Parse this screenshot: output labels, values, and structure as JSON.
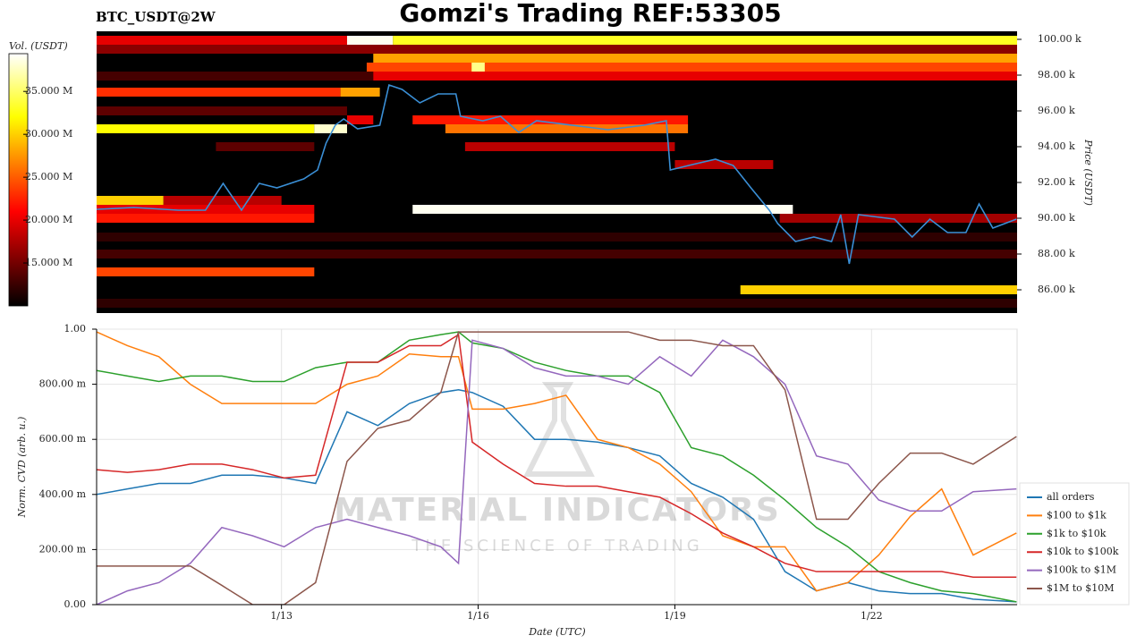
{
  "title": "Gomzi's Trading REF:53305",
  "watermark": {
    "title": "MATERIAL INDICATORS",
    "subtitle": "THE SCIENCE OF TRADING"
  },
  "chart_data": [
    {
      "type": "heatmap",
      "title": "BTC_USDT@2W",
      "ylabel": "Price (USDT)",
      "colorbar_label": "Vol. (USDT)",
      "clim": [
        10000000,
        39400000
      ],
      "cticks": [
        {
          "value": 15000000,
          "label": "15.000 M"
        },
        {
          "value": 20000000,
          "label": "20.000 M"
        },
        {
          "value": 25000000,
          "label": "25.000 M"
        },
        {
          "value": 30000000,
          "label": "30.000 M"
        },
        {
          "value": 35000000,
          "label": "35.000 M"
        }
      ],
      "xlim": [
        10.18,
        24.22
      ],
      "ylim": [
        84700,
        100450
      ],
      "yticks": [
        {
          "value": 86000,
          "label": "86.00 k"
        },
        {
          "value": 88000,
          "label": "88.00 k"
        },
        {
          "value": 90000,
          "label": "90.00 k"
        },
        {
          "value": 92000,
          "label": "92.00 k"
        },
        {
          "value": 94000,
          "label": "94.00 k"
        },
        {
          "value": 96000,
          "label": "96.00 k"
        },
        {
          "value": 98000,
          "label": "98.00 k"
        },
        {
          "value": 100000,
          "label": "100.00 k"
        }
      ],
      "bands": [
        {
          "price": 99950,
          "x": [
            10.18,
            14.0
          ],
          "volume": 20000000
        },
        {
          "price": 99950,
          "x": [
            14.0,
            14.7
          ],
          "volume": 39000000
        },
        {
          "price": 99950,
          "x": [
            14.7,
            24.22
          ],
          "volume": 33000000
        },
        {
          "price": 99450,
          "x": [
            10.18,
            24.22
          ],
          "volume": 16000000
        },
        {
          "price": 98950,
          "x": [
            14.4,
            24.22
          ],
          "volume": 28000000
        },
        {
          "price": 98450,
          "x": [
            14.3,
            24.22
          ],
          "volume": 24000000
        },
        {
          "price": 98450,
          "x": [
            15.9,
            16.1
          ],
          "volume": 36000000
        },
        {
          "price": 97950,
          "x": [
            10.18,
            14.4
          ],
          "volume": 13000000
        },
        {
          "price": 97950,
          "x": [
            14.4,
            24.22
          ],
          "volume": 20000000
        },
        {
          "price": 97050,
          "x": [
            10.18,
            13.9
          ],
          "volume": 23000000
        },
        {
          "price": 97050,
          "x": [
            13.9,
            14.5
          ],
          "volume": 28000000
        },
        {
          "price": 96000,
          "x": [
            10.18,
            14.0
          ],
          "volume": 14000000
        },
        {
          "price": 95500,
          "x": [
            14.0,
            14.4
          ],
          "volume": 20000000
        },
        {
          "price": 95500,
          "x": [
            15.0,
            19.2
          ],
          "volume": 22000000
        },
        {
          "price": 95000,
          "x": [
            10.18,
            13.5
          ],
          "volume": 32000000
        },
        {
          "price": 95000,
          "x": [
            13.5,
            14.0
          ],
          "volume": 38000000
        },
        {
          "price": 95000,
          "x": [
            15.5,
            19.2
          ],
          "volume": 26000000
        },
        {
          "price": 94000,
          "x": [
            12.0,
            13.5
          ],
          "volume": 14000000
        },
        {
          "price": 94000,
          "x": [
            15.8,
            19.0
          ],
          "volume": 18000000
        },
        {
          "price": 93000,
          "x": [
            19.0,
            20.5
          ],
          "volume": 18000000
        },
        {
          "price": 91000,
          "x": [
            10.18,
            11.2
          ],
          "volume": 30000000
        },
        {
          "price": 91000,
          "x": [
            11.2,
            13.0
          ],
          "volume": 18000000
        },
        {
          "price": 90500,
          "x": [
            10.18,
            13.5
          ],
          "volume": 20000000
        },
        {
          "price": 90500,
          "x": [
            15.0,
            20.8
          ],
          "volume": 39000000
        },
        {
          "price": 90000,
          "x": [
            10.18,
            13.5
          ],
          "volume": 22000000
        },
        {
          "price": 90000,
          "x": [
            20.6,
            24.22
          ],
          "volume": 17000000
        },
        {
          "price": 88950,
          "x": [
            10.18,
            24.22
          ],
          "volume": 12000000
        },
        {
          "price": 88000,
          "x": [
            10.18,
            24.22
          ],
          "volume": 13000000
        },
        {
          "price": 87000,
          "x": [
            10.18,
            13.5
          ],
          "volume": 24000000
        },
        {
          "price": 86000,
          "x": [
            20.0,
            24.22
          ],
          "volume": 30000000
        },
        {
          "price": 85250,
          "x": [
            10.18,
            24.22
          ],
          "volume": 12000000
        }
      ],
      "price": {
        "color": "#3a8fd6",
        "x": [
          10.18,
          10.75,
          11.43,
          11.84,
          12.11,
          12.39,
          12.66,
          12.93,
          13.34,
          13.55,
          13.68,
          13.82,
          13.95,
          14.16,
          14.5,
          14.64,
          14.84,
          15.11,
          15.39,
          15.66,
          15.73,
          16.07,
          16.34,
          16.62,
          16.89,
          17.43,
          17.98,
          18.53,
          18.87,
          18.93,
          19.21,
          19.62,
          19.89,
          20.16,
          20.44,
          20.57,
          20.84,
          21.12,
          21.39,
          21.53,
          21.66,
          21.8,
          22.35,
          22.62,
          22.89,
          23.16,
          23.44,
          23.64,
          23.85,
          24.21
        ],
        "values": [
          90500,
          90600,
          90450,
          90450,
          91950,
          90450,
          91950,
          91700,
          92200,
          92700,
          94200,
          95200,
          95550,
          95000,
          95200,
          97450,
          97200,
          96450,
          96950,
          96950,
          95700,
          95450,
          95700,
          94800,
          95450,
          95200,
          94950,
          95200,
          95450,
          92700,
          92950,
          93300,
          92950,
          91700,
          90450,
          89700,
          88700,
          88950,
          88700,
          90200,
          87450,
          90200,
          89950,
          88950,
          89950,
          89200,
          89200,
          90800,
          89450,
          89950
        ]
      }
    },
    {
      "type": "line",
      "xlabel": "Date (UTC)",
      "ylabel": "Norm. CVD (arb. u.)",
      "grid": true,
      "legend": "right",
      "xlim": [
        10.18,
        24.22
      ],
      "xticks": [
        {
          "value": 13,
          "label": "1/13"
        },
        {
          "value": 16,
          "label": "1/16"
        },
        {
          "value": 19,
          "label": "1/19"
        },
        {
          "value": 22,
          "label": "1/22"
        }
      ],
      "ylim": [
        0,
        1
      ],
      "yticks": [
        {
          "value": 0,
          "label": "0.00"
        },
        {
          "value": 0.2,
          "label": "200.00 m"
        },
        {
          "value": 0.4,
          "label": "400.00 m"
        },
        {
          "value": 0.6,
          "label": "600.00 m"
        },
        {
          "value": 0.8,
          "label": "800.00 m"
        },
        {
          "value": 1,
          "label": "1.00"
        }
      ],
      "x": [
        10.18,
        10.65,
        11.13,
        11.61,
        12.09,
        12.56,
        13.04,
        13.52,
        14.0,
        14.47,
        14.95,
        15.43,
        15.7,
        15.91,
        16.38,
        16.86,
        17.34,
        17.82,
        18.29,
        18.77,
        19.25,
        19.73,
        20.2,
        20.68,
        21.16,
        21.64,
        22.11,
        22.59,
        23.07,
        23.55,
        24.21
      ],
      "series": [
        {
          "name": "all orders",
          "color": "#1f77b4",
          "values": [
            0.4,
            0.42,
            0.44,
            0.44,
            0.47,
            0.47,
            0.46,
            0.44,
            0.7,
            0.65,
            0.73,
            0.77,
            0.78,
            0.77,
            0.72,
            0.6,
            0.6,
            0.59,
            0.57,
            0.54,
            0.44,
            0.39,
            0.31,
            0.12,
            0.05,
            0.08,
            0.05,
            0.04,
            0.04,
            0.02,
            0.01
          ]
        },
        {
          "name": "$100 to $1k",
          "color": "#ff7f0e",
          "values": [
            0.99,
            0.94,
            0.9,
            0.8,
            0.73,
            0.73,
            0.73,
            0.73,
            0.8,
            0.83,
            0.91,
            0.9,
            0.9,
            0.71,
            0.71,
            0.73,
            0.76,
            0.6,
            0.57,
            0.51,
            0.41,
            0.25,
            0.21,
            0.21,
            0.05,
            0.08,
            0.18,
            0.32,
            0.42,
            0.18,
            0.26
          ]
        },
        {
          "name": "$1k to $10k",
          "color": "#2ca02c",
          "values": [
            0.85,
            0.83,
            0.81,
            0.83,
            0.83,
            0.81,
            0.81,
            0.86,
            0.88,
            0.88,
            0.96,
            0.98,
            0.99,
            0.95,
            0.93,
            0.88,
            0.85,
            0.83,
            0.83,
            0.77,
            0.57,
            0.54,
            0.47,
            0.38,
            0.28,
            0.21,
            0.12,
            0.08,
            0.05,
            0.04,
            0.01
          ]
        },
        {
          "name": "$10k to $100k",
          "color": "#d62728",
          "values": [
            0.49,
            0.48,
            0.49,
            0.51,
            0.51,
            0.49,
            0.46,
            0.47,
            0.88,
            0.88,
            0.94,
            0.94,
            0.98,
            0.59,
            0.51,
            0.44,
            0.43,
            0.43,
            0.41,
            0.39,
            0.33,
            0.26,
            0.21,
            0.15,
            0.12,
            0.12,
            0.12,
            0.12,
            0.12,
            0.1,
            0.1
          ]
        },
        {
          "name": "$100k to $1M",
          "color": "#9467bd",
          "values": [
            0.0,
            0.05,
            0.08,
            0.15,
            0.28,
            0.25,
            0.21,
            0.28,
            0.31,
            0.28,
            0.25,
            0.21,
            0.15,
            0.96,
            0.93,
            0.86,
            0.83,
            0.83,
            0.8,
            0.9,
            0.83,
            0.96,
            0.9,
            0.8,
            0.54,
            0.51,
            0.38,
            0.34,
            0.34,
            0.41,
            0.42
          ]
        },
        {
          "name": "$1M to $10M",
          "color": "#8c564b",
          "values": [
            0.14,
            0.14,
            0.14,
            0.14,
            0.07,
            0.0,
            0.0,
            0.08,
            0.52,
            0.64,
            0.67,
            0.77,
            0.99,
            0.99,
            0.99,
            0.99,
            0.99,
            0.99,
            0.99,
            0.96,
            0.96,
            0.94,
            0.94,
            0.78,
            0.31,
            0.31,
            0.44,
            0.55,
            0.55,
            0.51,
            0.61
          ]
        }
      ]
    }
  ]
}
